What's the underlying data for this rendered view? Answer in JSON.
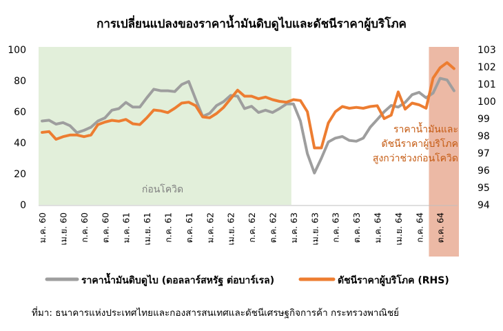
{
  "title": "การเปลี่ยนแปลงของราคาน้ำมันดิบดูไบและดัชนีราคาผู้บริโภค",
  "source": "ที่มา: ธนาคารแห่งประเทศไทยและกองสารสนเทศและดัชนีเศรษฐกิจการค้า กระทรวงพาณิชย์",
  "colors": {
    "oil": "#9e9e9e",
    "cpi": "#ed7d31",
    "pre_covid_shade": "#e2efda",
    "high_shade": "#ecb9a5",
    "pre_covid_label": "#7f7f7f",
    "high_label": "#c55a11"
  },
  "annotations": {
    "pre_covid": "ก่อนโควิด",
    "high": [
      "ราคาน้ำมันและ",
      "ดัชนีราคาผู้บริโภค",
      "สูงกว่าช่วงก่อนโควิด"
    ]
  },
  "chart_data": {
    "type": "line",
    "x_tick_labels": [
      "ม.ค. 60",
      "เม.ย. 60",
      "ก.ค. 60",
      "ต.ค. 60",
      "ม.ค. 61",
      "เม.ย. 61",
      "ก.ค. 61",
      "ต.ค. 61",
      "ม.ค. 62",
      "เม.ย. 62",
      "ก.ค. 62",
      "ต.ค. 62",
      "ม.ค. 63",
      "เม.ย. 63",
      "ก.ค. 63",
      "ต.ค. 63",
      "ม.ค. 64",
      "เม.ย. 64",
      "ก.ค. 64",
      "ต.ค. 64"
    ],
    "y_left": {
      "ylim": [
        0,
        100
      ],
      "ticks": [
        0,
        20,
        40,
        60,
        80,
        100
      ]
    },
    "y_right": {
      "ylim": [
        94,
        103
      ],
      "ticks": [
        94,
        95,
        96,
        97,
        98,
        99,
        100,
        101,
        102,
        103
      ]
    },
    "shaded_regions": [
      {
        "name": "pre_covid",
        "x_start": "ม.ค. 60",
        "x_end": "ม.ค. 63"
      },
      {
        "name": "high",
        "x_start": "ก.ย. 64",
        "x_end": "ธ.ค. 64"
      }
    ],
    "series": [
      {
        "name": "ราคาน้ำมันดิบดูไบ (ดอลลาร์สหรัฐ ต่อบาร์เรล)",
        "axis": "left",
        "values": [
          54,
          54.5,
          52,
          53,
          51,
          46.5,
          48,
          50,
          54,
          56,
          61,
          62,
          66,
          63,
          63,
          69,
          74.5,
          73.5,
          73.5,
          73,
          77.5,
          79.5,
          68,
          57,
          59,
          64,
          66.5,
          70.5,
          70,
          62,
          63.5,
          59.5,
          61,
          59.5,
          62,
          65,
          65,
          54,
          33,
          20.5,
          30,
          40.5,
          43,
          44,
          41.5,
          41,
          43,
          50,
          55,
          60,
          64,
          63,
          66,
          71,
          72.5,
          69,
          72,
          81.5,
          80.5,
          73.5
        ]
      },
      {
        "name": "ดัชนีราคาผู้บริโภค (RHS)",
        "axis": "right",
        "values": [
          98.2,
          98.25,
          97.8,
          97.95,
          98.05,
          98.05,
          97.95,
          98.05,
          98.65,
          98.8,
          98.9,
          98.85,
          98.95,
          98.7,
          98.65,
          99.05,
          99.5,
          99.45,
          99.35,
          99.6,
          99.9,
          99.95,
          99.75,
          99.1,
          99.05,
          99.3,
          99.65,
          100.15,
          100.65,
          100.3,
          100.3,
          100.15,
          100.25,
          100.1,
          100,
          99.95,
          100.1,
          100.05,
          99.4,
          97.3,
          97.3,
          98.75,
          99.4,
          99.7,
          99.6,
          99.65,
          99.6,
          99.7,
          99.75,
          99,
          99.2,
          100.55,
          99.55,
          99.9,
          99.8,
          99.6,
          101.35,
          101.95,
          102.25,
          101.9
        ]
      }
    ]
  }
}
